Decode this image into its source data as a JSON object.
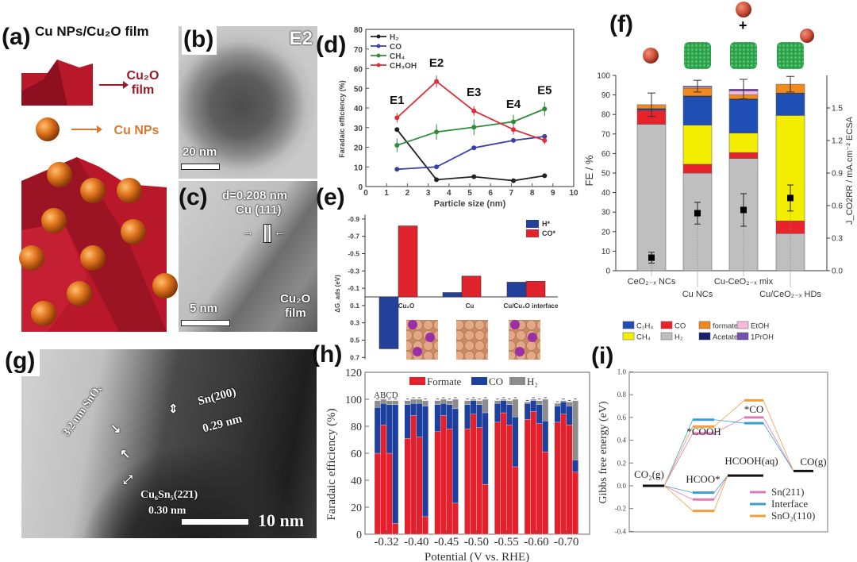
{
  "figure": {
    "labels": {
      "a": "(a)",
      "b": "(b)",
      "c": "(c)",
      "d": "(d)",
      "e": "(e)",
      "f": "(f)",
      "g": "(g)",
      "h": "(h)",
      "i": "(i)"
    },
    "a": {
      "title": "Cu NPs/Cu₂O film",
      "film_line1": "Cu₂O",
      "film_line2": "film",
      "np": "Cu NPs"
    },
    "b": {
      "tag": "E2",
      "scale": "20 nm"
    },
    "c": {
      "spacing": "d=0.208 nm",
      "plane": "Cu (111)",
      "scale": "5 nm",
      "region_line1": "Cu₂O",
      "region_line2": "film"
    },
    "g": {
      "shell": "3.2 nm SnOₓ",
      "sn_plane": "Sn(200)",
      "sn_spacing": "0.29 nm",
      "cusn_plane": "Cu₆Sn₅(22̄1)",
      "cusn_spacing": "0.30 nm",
      "scale": "10 nm"
    },
    "f_plus": "+"
  },
  "chart_data": [
    {
      "id": "d",
      "type": "line",
      "xlabel": "Particle size (nm)",
      "ylabel": "Faradaic efficiency (%)",
      "xlim": [
        0,
        10
      ],
      "ylim": [
        0,
        80
      ],
      "xticks": [
        0,
        1,
        2,
        3,
        4,
        5,
        6,
        7,
        8,
        9,
        10
      ],
      "yticks": [
        0,
        10,
        20,
        30,
        40,
        50,
        60,
        70,
        80
      ],
      "x": [
        1.5,
        3.4,
        5.2,
        7.1,
        8.6
      ],
      "series": [
        {
          "name": "H₂",
          "color": "#222222",
          "y": [
            29,
            3.5,
            5,
            3,
            5.5
          ],
          "err": [
            1,
            0.5,
            0.5,
            0.5,
            0.5
          ]
        },
        {
          "name": "CO",
          "color": "#3a3fa8",
          "y": [
            8.8,
            10,
            19.7,
            23.5,
            25.5
          ],
          "err": [
            0.5,
            0.5,
            0.5,
            0.5,
            0.5
          ]
        },
        {
          "name": "CH₄",
          "color": "#2e8b3a",
          "y": [
            21,
            27.8,
            30.2,
            33,
            39.5
          ],
          "err": [
            3.5,
            4,
            4,
            3.5,
            3.5
          ]
        },
        {
          "name": "CH₃OH",
          "color": "#d9303a",
          "y": [
            35,
            53.5,
            38.5,
            29,
            23.5
          ],
          "err": [
            2.5,
            3,
            2.5,
            2.5,
            2
          ]
        }
      ],
      "annotations": [
        {
          "text": "E1",
          "x": 1.5,
          "y": 42
        },
        {
          "text": "E2",
          "x": 3.4,
          "y": 61
        },
        {
          "text": "E3",
          "x": 5.2,
          "y": 46
        },
        {
          "text": "E4",
          "x": 7.1,
          "y": 40
        },
        {
          "text": "E5",
          "x": 8.6,
          "y": 47
        }
      ],
      "legend": "top-left"
    },
    {
      "id": "e",
      "type": "bar",
      "ylabel": "ΔG_ads (eV)",
      "ylim": [
        0.7,
        -0.9
      ],
      "yticks": [
        -0.9,
        -0.7,
        -0.5,
        -0.3,
        -0.1,
        0.1,
        0.3,
        0.5,
        0.7
      ],
      "categories": [
        "Cu₂O",
        "Cu",
        "Cu/Cu₂O interface"
      ],
      "series": [
        {
          "name": "H*",
          "color": "#23409a",
          "values": [
            0.6,
            -0.05,
            -0.17
          ]
        },
        {
          "name": "CO*",
          "color": "#e1232e",
          "values": [
            -0.82,
            -0.24,
            -0.18
          ]
        }
      ],
      "legend": "top-right"
    },
    {
      "id": "f",
      "type": "bar",
      "ylabel": "FE / %",
      "y2label": "J_CO2RR / mA.cm⁻² ECSA",
      "ylim": [
        0,
        100
      ],
      "y2lim": [
        0,
        1.8
      ],
      "yticks": [
        0,
        10,
        20,
        30,
        40,
        50,
        60,
        70,
        80,
        90,
        100
      ],
      "y2ticks": [
        "0.0",
        "0.3",
        "0.6",
        "0.9",
        "1.2",
        "1.5"
      ],
      "categories": [
        "CeO₂₋ₓ NCs",
        "Cu NCs",
        "Cu-CeO₂₋ₓ mix",
        "Cu/CeO₂₋ₓ HDs"
      ],
      "series": [
        {
          "name": "H₂",
          "color": "#bfbfbf",
          "values": [
            75,
            50,
            57.5,
            19
          ]
        },
        {
          "name": "CO",
          "color": "#e8232a",
          "values": [
            7,
            4.5,
            3,
            6.5
          ]
        },
        {
          "name": "CH₄",
          "color": "#f3ee00",
          "values": [
            0,
            20,
            10,
            54
          ]
        },
        {
          "name": "C₂H₄",
          "color": "#1f4fb5",
          "values": [
            0.5,
            14.5,
            17,
            11
          ]
        },
        {
          "name": "Acetate",
          "color": "#14206b",
          "values": [
            0.5,
            0.5,
            0.5,
            0.5
          ]
        },
        {
          "name": "formate",
          "color": "#f08a1c",
          "values": [
            2,
            4,
            2,
            4.5
          ]
        },
        {
          "name": "EtOH",
          "color": "#f6b8d8",
          "values": [
            0,
            0.5,
            2,
            0
          ]
        },
        {
          "name": "1PrOH",
          "color": "#7a4fb0",
          "values": [
            0,
            0.5,
            1,
            0
          ]
        }
      ],
      "total_err": [
        6,
        3,
        5,
        4
      ],
      "current_density": [
        0.12,
        0.53,
        0.56,
        0.67
      ],
      "current_err": [
        0.05,
        0.1,
        0.15,
        0.12
      ],
      "legend": "bottom"
    },
    {
      "id": "h",
      "type": "bar",
      "xlabel": "Potential (V vs. RHE)",
      "ylabel": "Faradaic efficiency (%)",
      "ylim": [
        0,
        120
      ],
      "yticks": [
        0,
        20,
        40,
        60,
        80,
        100,
        120
      ],
      "categories": [
        "-0.32",
        "-0.40",
        "-0.45",
        "-0.50",
        "-0.55",
        "-0.60",
        "-0.70"
      ],
      "subgroups_label": "ABCD",
      "series": [
        {
          "name": "Formate",
          "color": "#e3202b",
          "values": [
            [
              60,
              81,
              60,
              8
            ],
            [
              71,
              88,
              72,
              13
            ],
            [
              76,
              88,
              78,
              23
            ],
            [
              78,
              89,
              79,
              37
            ],
            [
              83,
              90,
              81,
              50
            ],
            [
              85,
              91,
              82,
              61
            ],
            [
              83,
              89,
              81,
              46
            ]
          ]
        },
        {
          "name": "CO",
          "color": "#1d3f9e",
          "values": [
            [
              34,
              16,
              36,
              88
            ],
            [
              25,
              9,
              25,
              82
            ],
            [
              20,
              9,
              18,
              70
            ],
            [
              18,
              10,
              17,
              53
            ],
            [
              14,
              9,
              15,
              37
            ],
            [
              12,
              8,
              14,
              23
            ],
            [
              12,
              9,
              14,
              9
            ]
          ]
        },
        {
          "name": "H₂",
          "color": "#8c8c8c",
          "values": [
            [
              5,
              3,
              3,
              3
            ],
            [
              3,
              3,
              3,
              4
            ],
            [
              3,
              3,
              3,
              7
            ],
            [
              3,
              1,
              3,
              10
            ],
            [
              2,
              1,
              3,
              13
            ],
            [
              1,
              1,
              3,
              16
            ],
            [
              2,
              1,
              3,
              44
            ]
          ]
        }
      ],
      "legend": "top"
    },
    {
      "id": "i",
      "type": "line",
      "ylabel": "Gibbs free energy (eV)",
      "ylim": [
        -0.4,
        1.0
      ],
      "yticks": [
        "-0.4",
        "-0.2",
        "0.0",
        "0.2",
        "0.4",
        "0.6",
        "0.8",
        "1.0"
      ],
      "state_labels": {
        "co2": "CO₂(g)",
        "cooh": "*COOH",
        "co": "*CO",
        "hcooh": "HCOOH(aq)",
        "cog": "CO(g)",
        "hcoo": "HCOO*"
      },
      "common": {
        "co2": 0,
        "hcooh": 0.09,
        "cog": 0.13
      },
      "series": [
        {
          "name": "Sn(211)",
          "color": "#d97db8",
          "cooh": 0.46,
          "co": 0.6,
          "hcoo": -0.12
        },
        {
          "name": "Interface",
          "color": "#3a9fd0",
          "cooh": 0.58,
          "co": 0.55,
          "hcoo": -0.06
        },
        {
          "name": "SnO₂(110)",
          "color": "#f0a040",
          "cooh": 0.52,
          "co": 0.75,
          "hcoo": -0.22
        }
      ],
      "legend": "bottom-right"
    }
  ]
}
